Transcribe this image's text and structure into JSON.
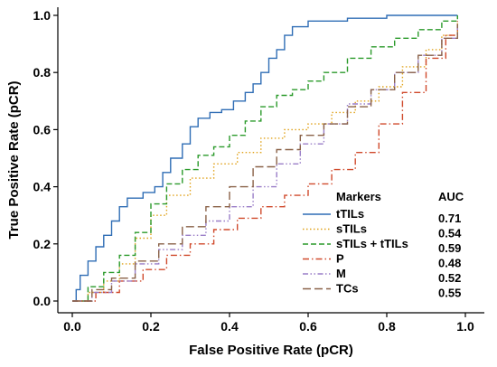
{
  "chart_data": {
    "type": "line",
    "xlabel": "False Positive Rate (pCR)",
    "ylabel": "True Positive Rate (pCR)",
    "xlim": [
      0,
      1
    ],
    "ylim": [
      0,
      1
    ],
    "xticks": [
      "0.0",
      "0.2",
      "0.4",
      "0.6",
      "0.8",
      "1.0"
    ],
    "yticks": [
      "0.0",
      "0.2",
      "0.4",
      "0.6",
      "0.8",
      "1.0"
    ],
    "grid": false,
    "legend": {
      "placement": "bottom-right",
      "header_name": "Markers",
      "header_value": "AUC"
    },
    "series": [
      {
        "name": "tTILs",
        "auc": "0.71",
        "color": "#2f6db5",
        "dash": "solid",
        "points": [
          [
            0,
            0
          ],
          [
            0.01,
            0.04
          ],
          [
            0.02,
            0.09
          ],
          [
            0.04,
            0.14
          ],
          [
            0.06,
            0.19
          ],
          [
            0.08,
            0.23
          ],
          [
            0.1,
            0.28
          ],
          [
            0.12,
            0.33
          ],
          [
            0.14,
            0.36
          ],
          [
            0.18,
            0.38
          ],
          [
            0.21,
            0.4
          ],
          [
            0.23,
            0.45
          ],
          [
            0.25,
            0.5
          ],
          [
            0.28,
            0.55
          ],
          [
            0.3,
            0.61
          ],
          [
            0.32,
            0.64
          ],
          [
            0.35,
            0.66
          ],
          [
            0.38,
            0.67
          ],
          [
            0.41,
            0.7
          ],
          [
            0.44,
            0.73
          ],
          [
            0.46,
            0.76
          ],
          [
            0.48,
            0.8
          ],
          [
            0.5,
            0.85
          ],
          [
            0.52,
            0.88
          ],
          [
            0.54,
            0.93
          ],
          [
            0.56,
            0.96
          ],
          [
            0.6,
            0.98
          ],
          [
            0.7,
            0.99
          ],
          [
            0.8,
            1.0
          ],
          [
            0.9,
            1.0
          ],
          [
            0.98,
            1.0
          ]
        ]
      },
      {
        "name": "sTILs",
        "auc": "0.54",
        "color": "#e0a21a",
        "dash": "dotted",
        "points": [
          [
            0,
            0
          ],
          [
            0.04,
            0.03
          ],
          [
            0.08,
            0.07
          ],
          [
            0.12,
            0.13
          ],
          [
            0.16,
            0.22
          ],
          [
            0.2,
            0.3
          ],
          [
            0.24,
            0.37
          ],
          [
            0.3,
            0.43
          ],
          [
            0.36,
            0.48
          ],
          [
            0.42,
            0.52
          ],
          [
            0.48,
            0.57
          ],
          [
            0.54,
            0.6
          ],
          [
            0.6,
            0.62
          ],
          [
            0.66,
            0.66
          ],
          [
            0.72,
            0.7
          ],
          [
            0.78,
            0.75
          ],
          [
            0.84,
            0.82
          ],
          [
            0.9,
            0.88
          ],
          [
            0.94,
            0.93
          ],
          [
            0.98,
            0.98
          ]
        ]
      },
      {
        "name": "sTILs + tTILs",
        "auc": "0.59",
        "color": "#2a9a2a",
        "dash": "dashed",
        "points": [
          [
            0,
            0
          ],
          [
            0.04,
            0.05
          ],
          [
            0.08,
            0.1
          ],
          [
            0.12,
            0.16
          ],
          [
            0.16,
            0.24
          ],
          [
            0.2,
            0.34
          ],
          [
            0.24,
            0.41
          ],
          [
            0.28,
            0.46
          ],
          [
            0.32,
            0.51
          ],
          [
            0.36,
            0.54
          ],
          [
            0.4,
            0.58
          ],
          [
            0.44,
            0.63
          ],
          [
            0.48,
            0.68
          ],
          [
            0.52,
            0.72
          ],
          [
            0.56,
            0.74
          ],
          [
            0.6,
            0.77
          ],
          [
            0.64,
            0.8
          ],
          [
            0.7,
            0.85
          ],
          [
            0.76,
            0.89
          ],
          [
            0.82,
            0.92
          ],
          [
            0.88,
            0.95
          ],
          [
            0.94,
            0.98
          ],
          [
            0.98,
            1.0
          ]
        ]
      },
      {
        "name": "P",
        "auc": "0.48",
        "color": "#d04a2c",
        "dash": "dashdot",
        "points": [
          [
            0,
            0
          ],
          [
            0.06,
            0.03
          ],
          [
            0.12,
            0.07
          ],
          [
            0.18,
            0.11
          ],
          [
            0.24,
            0.16
          ],
          [
            0.3,
            0.2
          ],
          [
            0.36,
            0.25
          ],
          [
            0.42,
            0.29
          ],
          [
            0.48,
            0.33
          ],
          [
            0.54,
            0.37
          ],
          [
            0.6,
            0.41
          ],
          [
            0.66,
            0.46
          ],
          [
            0.72,
            0.52
          ],
          [
            0.78,
            0.62
          ],
          [
            0.84,
            0.73
          ],
          [
            0.9,
            0.85
          ],
          [
            0.95,
            0.93
          ],
          [
            0.98,
            0.98
          ]
        ]
      },
      {
        "name": "M",
        "auc": "0.52",
        "color": "#9a7ec8",
        "dash": "dashdotdot",
        "points": [
          [
            0,
            0
          ],
          [
            0.05,
            0.03
          ],
          [
            0.1,
            0.07
          ],
          [
            0.16,
            0.13
          ],
          [
            0.22,
            0.18
          ],
          [
            0.28,
            0.23
          ],
          [
            0.34,
            0.28
          ],
          [
            0.4,
            0.33
          ],
          [
            0.46,
            0.4
          ],
          [
            0.52,
            0.48
          ],
          [
            0.58,
            0.55
          ],
          [
            0.64,
            0.62
          ],
          [
            0.7,
            0.69
          ],
          [
            0.76,
            0.74
          ],
          [
            0.82,
            0.8
          ],
          [
            0.88,
            0.86
          ],
          [
            0.94,
            0.92
          ],
          [
            0.98,
            0.97
          ]
        ]
      },
      {
        "name": "TCs",
        "auc": "0.55",
        "color": "#8a6248",
        "dash": "longdash",
        "points": [
          [
            0,
            0
          ],
          [
            0.05,
            0.04
          ],
          [
            0.1,
            0.08
          ],
          [
            0.16,
            0.14
          ],
          [
            0.22,
            0.2
          ],
          [
            0.28,
            0.26
          ],
          [
            0.34,
            0.33
          ],
          [
            0.4,
            0.4
          ],
          [
            0.46,
            0.47
          ],
          [
            0.52,
            0.53
          ],
          [
            0.58,
            0.58
          ],
          [
            0.64,
            0.62
          ],
          [
            0.7,
            0.68
          ],
          [
            0.76,
            0.74
          ],
          [
            0.82,
            0.8
          ],
          [
            0.88,
            0.86
          ],
          [
            0.94,
            0.92
          ],
          [
            0.98,
            0.97
          ]
        ]
      }
    ]
  }
}
